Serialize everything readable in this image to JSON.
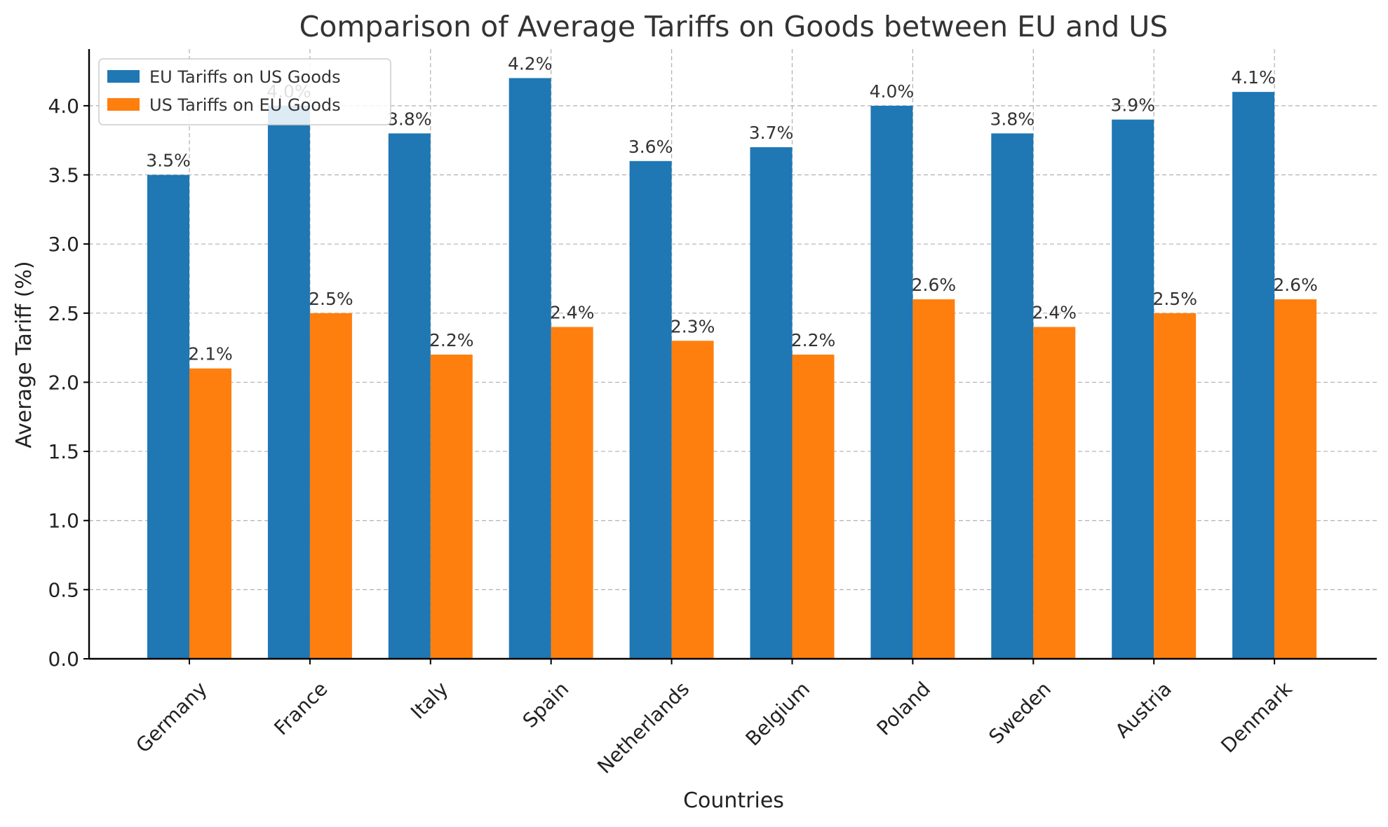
{
  "chart_data": {
    "type": "bar",
    "title": "Comparison of Average Tariffs on Goods between EU and US",
    "xlabel": "Countries",
    "ylabel": "Average Tariff (%)",
    "categories": [
      "Germany",
      "France",
      "Italy",
      "Spain",
      "Netherlands",
      "Belgium",
      "Poland",
      "Sweden",
      "Austria",
      "Denmark"
    ],
    "series": [
      {
        "name": "EU Tariffs on US Goods",
        "color": "#1f77b4",
        "values": [
          3.5,
          4.0,
          3.8,
          4.2,
          3.6,
          3.7,
          4.0,
          3.8,
          3.9,
          4.1
        ],
        "labels": [
          "3.5%",
          "4.0%",
          "3.8%",
          "4.2%",
          "3.6%",
          "3.7%",
          "4.0%",
          "3.8%",
          "3.9%",
          "4.1%"
        ]
      },
      {
        "name": "US Tariffs on EU Goods",
        "color": "#ff7f0e",
        "values": [
          2.1,
          2.5,
          2.2,
          2.4,
          2.3,
          2.2,
          2.6,
          2.4,
          2.5,
          2.6
        ],
        "labels": [
          "2.1%",
          "2.5%",
          "2.2%",
          "2.4%",
          "2.3%",
          "2.2%",
          "2.6%",
          "2.4%",
          "2.5%",
          "2.6%"
        ]
      }
    ],
    "ylim": [
      0,
      4.41
    ],
    "yticks": [
      "0.0",
      "0.5",
      "1.0",
      "1.5",
      "2.0",
      "2.5",
      "3.0",
      "3.5",
      "4.0"
    ],
    "grid": true,
    "legend_position": "top-left"
  }
}
